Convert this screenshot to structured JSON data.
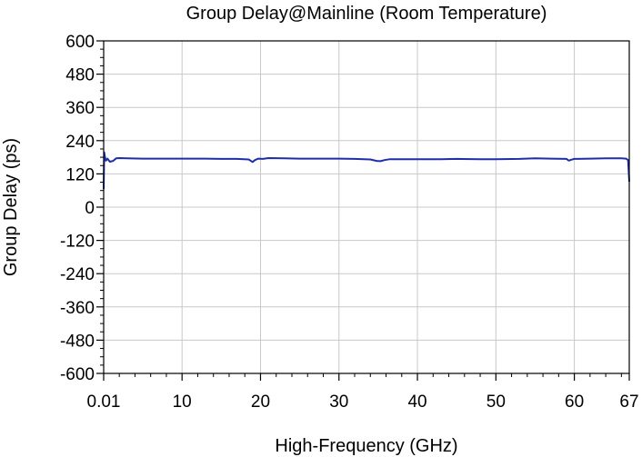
{
  "chart_data": {
    "type": "line",
    "title": "Group Delay@Mainline (Room Temperature)",
    "xlabel": "High-Frequency (GHz)",
    "ylabel": "Group Delay (ps)",
    "xlim": [
      0.01,
      67
    ],
    "ylim": [
      -600,
      600
    ],
    "x_ticks": [
      0.01,
      10,
      20,
      30,
      40,
      50,
      60,
      67
    ],
    "x_tick_labels": [
      "0.01",
      "10",
      "20",
      "30",
      "40",
      "50",
      "60",
      "67"
    ],
    "y_ticks": [
      600,
      480,
      360,
      240,
      120,
      0,
      -120,
      -240,
      -360,
      -480,
      -600
    ],
    "y_tick_labels": [
      "600",
      "480",
      "360",
      "240",
      "120",
      "0",
      "-120",
      "-240",
      "-360",
      "-480",
      "-600"
    ],
    "grid": true,
    "line_color": "#1f2ea8",
    "series": [
      {
        "x": [
          0.01,
          0.08,
          0.15,
          0.3,
          0.5,
          0.8,
          1.2,
          1.6,
          2.0,
          3,
          5,
          8,
          10,
          13,
          15,
          17,
          18.5,
          19.0,
          19.3,
          19.7,
          20.3,
          21,
          23,
          25,
          28,
          30,
          32,
          34,
          34.8,
          35.3,
          35.8,
          36.5,
          38,
          40,
          43,
          45,
          48,
          50,
          53,
          55,
          57,
          59,
          59.3,
          59.6,
          60,
          62,
          64,
          66,
          66.6,
          66.85,
          67
        ],
        "y": [
          65,
          198,
          185,
          168,
          175,
          164,
          167,
          176,
          177,
          176,
          175,
          175,
          175,
          175,
          174,
          174,
          172,
          163,
          170,
          175,
          174,
          177,
          176,
          175,
          175,
          175,
          174,
          172,
          167,
          166,
          170,
          173,
          173,
          173,
          173,
          174,
          173,
          173,
          174,
          176,
          175,
          174,
          168,
          171,
          174,
          175,
          176,
          176,
          175,
          170,
          92
        ]
      }
    ]
  }
}
